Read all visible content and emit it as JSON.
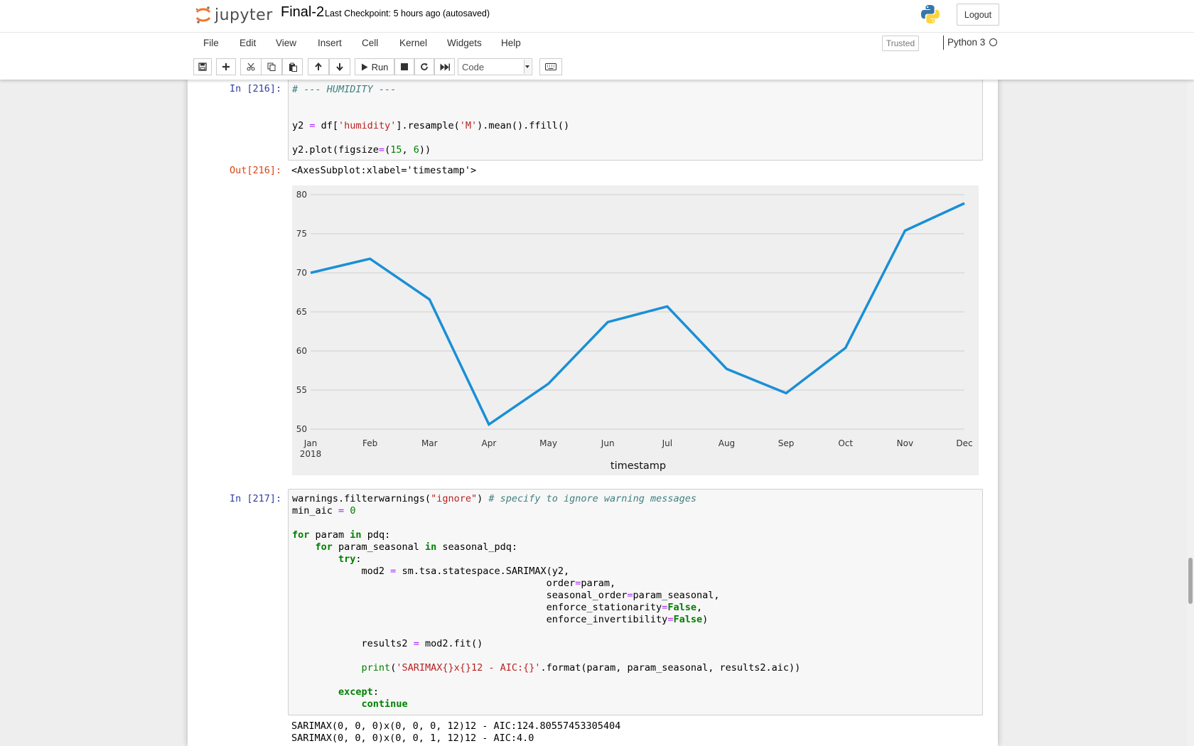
{
  "header": {
    "logo_text": "jupyter",
    "notebook_name": "Final-2",
    "checkpoint": "Last Checkpoint: 5 hours ago",
    "autosave": "(autosaved)",
    "logout_label": "Logout"
  },
  "menubar": {
    "items": [
      "File",
      "Edit",
      "View",
      "Insert",
      "Cell",
      "Kernel",
      "Widgets",
      "Help"
    ],
    "trusted": "Trusted",
    "kernel_name": "Python 3"
  },
  "toolbar": {
    "run_label": "Run",
    "cell_type": "Code",
    "icons": [
      "save-icon",
      "plus-icon",
      "cut-icon",
      "copy-icon",
      "paste-icon",
      "arrow-up-icon",
      "arrow-down-icon",
      "play-icon",
      "stop-icon",
      "restart-icon",
      "fast-forward-icon",
      "keyboard-icon"
    ]
  },
  "cells": {
    "cell1": {
      "prompt": "In [216]:",
      "code": [
        "# --- HUMIDITY ---",
        "",
        "",
        "y2 = df['humidity'].resample('M').mean().ffill()",
        "",
        "y2.plot(figsize=(15, 6))"
      ],
      "out_prompt": "Out[216]:",
      "out_text": "<AxesSubplot:xlabel='timestamp'>"
    },
    "cell2": {
      "prompt": "In [217]:",
      "code": [
        "warnings.filterwarnings(\"ignore\") # specify to ignore warning messages",
        "min_aic = 0",
        "",
        "for param in pdq:",
        "    for param_seasonal in seasonal_pdq:",
        "        try:",
        "            mod2 = sm.tsa.statespace.SARIMAX(y2,",
        "                                            order=param,",
        "                                            seasonal_order=param_seasonal,",
        "                                            enforce_stationarity=False,",
        "                                            enforce_invertibility=False)",
        "",
        "            results2 = mod2.fit()",
        "",
        "            print('SARIMAX{}x{}12 - AIC:{}'.format(param, param_seasonal, results2.aic))",
        "",
        "        except:",
        "            continue"
      ],
      "output": [
        "SARIMAX(0, 0, 0)x(0, 0, 0, 12)12 - AIC:124.80557453305404",
        "SARIMAX(0, 0, 0)x(0, 0, 1, 12)12 - AIC:4.0"
      ]
    }
  },
  "chart_data": {
    "type": "line",
    "categories": [
      "Jan",
      "Feb",
      "Mar",
      "Apr",
      "May",
      "Jun",
      "Jul",
      "Aug",
      "Sep",
      "Oct",
      "Nov",
      "Dec"
    ],
    "year_label": "2018",
    "series": [
      {
        "values": [
          70.0,
          71.8,
          66.6,
          50.6,
          55.8,
          63.7,
          65.7,
          57.7,
          54.6,
          60.4,
          75.4,
          78.9
        ]
      }
    ],
    "xlabel": "timestamp",
    "ylabel": "",
    "ylim": [
      50,
      80
    ],
    "yticks": [
      50,
      55,
      60,
      65,
      70,
      75,
      80
    ],
    "grid": "horizontal",
    "line_color": "#1a8fd6",
    "background_color": "#efefef"
  }
}
